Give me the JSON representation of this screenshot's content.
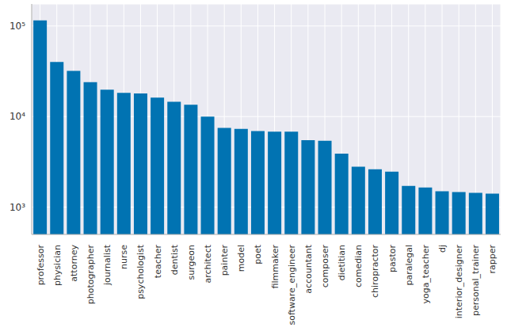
{
  "chart_data": {
    "type": "bar",
    "categories": [
      "professor",
      "physician",
      "attorney",
      "photographer",
      "journalist",
      "nurse",
      "psychologist",
      "teacher",
      "dentist",
      "surgeon",
      "architect",
      "painter",
      "model",
      "poet",
      "filmmaker",
      "software_engineer",
      "accountant",
      "composer",
      "dietitian",
      "comedian",
      "chiropractor",
      "pastor",
      "paralegal",
      "yoga_teacher",
      "dj",
      "interior_designer",
      "personal_trainer",
      "rapper"
    ],
    "values": [
      115000,
      40000,
      32000,
      24000,
      19800,
      18300,
      18000,
      16200,
      14600,
      13500,
      10000,
      7500,
      7300,
      6900,
      6800,
      6800,
      5500,
      5400,
      3900,
      2800,
      2620,
      2470,
      1720,
      1650,
      1500,
      1470,
      1440,
      1410
    ],
    "color": "#0173b2",
    "log": "y",
    "ylim": [
      500,
      175000
    ],
    "yticks": [
      {
        "value": 1000,
        "label": "10³"
      },
      {
        "value": 10000,
        "label": "10⁴"
      },
      {
        "value": 100000,
        "label": "10⁵"
      }
    ],
    "grid": true
  }
}
